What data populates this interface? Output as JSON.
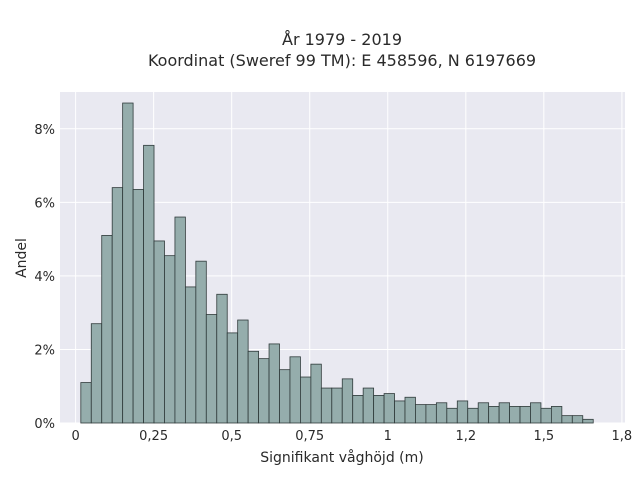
{
  "chart_data": {
    "type": "bar",
    "title_line1": "År 1979 - 2019",
    "title_line2": "Koordinat (Sweref 99 TM): E 458596, N 6197669",
    "xlabel": "Signifikant våghöjd (m)",
    "ylabel": "Andel",
    "xlim": [
      -0.05,
      1.76
    ],
    "ylim": [
      0,
      9
    ],
    "x_ticks": [
      {
        "value": 0,
        "label": "0"
      },
      {
        "value": 0.25,
        "label": "0,25"
      },
      {
        "value": 0.5,
        "label": "0,5"
      },
      {
        "value": 0.75,
        "label": "0,75"
      },
      {
        "value": 1.0,
        "label": "1"
      },
      {
        "value": 1.25,
        "label": "1,2"
      },
      {
        "value": 1.5,
        "label": "1,5"
      },
      {
        "value": 1.75,
        "label": "1,8"
      }
    ],
    "y_ticks": [
      {
        "value": 0,
        "label": "0%"
      },
      {
        "value": 2,
        "label": "2%"
      },
      {
        "value": 4,
        "label": "4%"
      },
      {
        "value": 6,
        "label": "6%"
      },
      {
        "value": 8,
        "label": "8%"
      }
    ],
    "bin_width": 0.0335,
    "bin_start": 0.0167,
    "values": [
      1.1,
      2.7,
      5.1,
      6.4,
      8.7,
      6.35,
      7.55,
      4.95,
      4.55,
      5.6,
      3.7,
      4.4,
      2.95,
      3.5,
      2.45,
      2.8,
      1.95,
      1.75,
      2.15,
      1.45,
      1.8,
      1.25,
      1.6,
      0.95,
      0.95,
      1.2,
      0.75,
      0.95,
      0.75,
      0.8,
      0.6,
      0.7,
      0.5,
      0.5,
      0.55,
      0.4,
      0.6,
      0.4,
      0.55,
      0.45,
      0.55,
      0.45,
      0.45,
      0.55,
      0.4,
      0.45,
      0.2,
      0.2,
      0.1
    ],
    "grid": true,
    "colors": {
      "plot_background": "#e9e9f1",
      "grid": "#ffffff",
      "bar_fill": "#95adac",
      "bar_stroke": "#2f3a3a"
    }
  }
}
